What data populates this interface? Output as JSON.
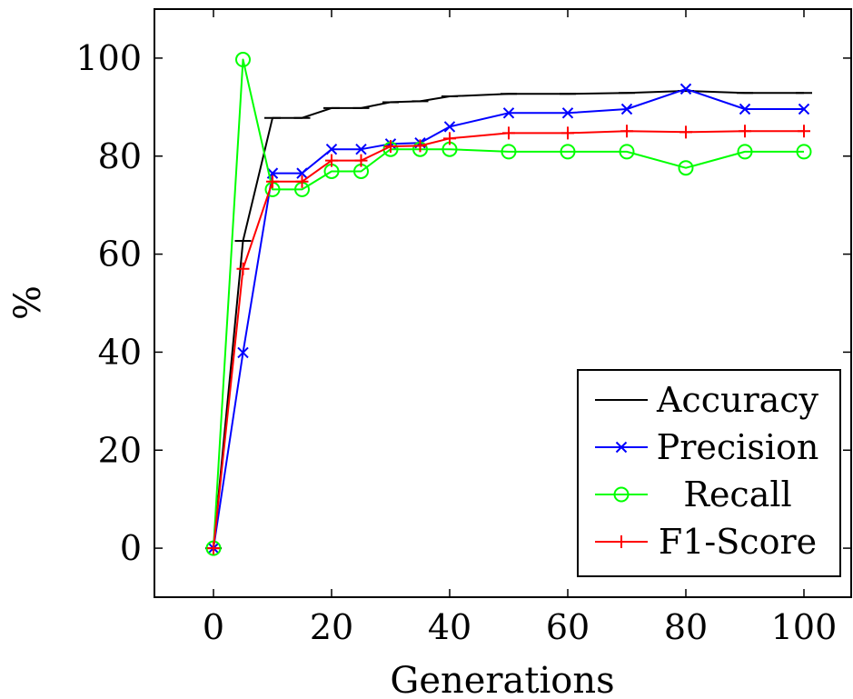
{
  "chart_data": {
    "type": "line",
    "xlabel": "Generations",
    "ylabel": "%",
    "xlim": [
      -10,
      108
    ],
    "ylim": [
      -10,
      110
    ],
    "xticks": [
      0,
      20,
      40,
      60,
      80,
      100
    ],
    "yticks": [
      0,
      20,
      40,
      60,
      80,
      100
    ],
    "grid": false,
    "legend_position": "bottom-right",
    "series": [
      {
        "name": "Accuracy",
        "color": "#000000",
        "marker": "dash",
        "x": [
          0,
          5,
          10,
          15,
          20,
          25,
          30,
          35,
          40,
          50,
          60,
          70,
          80,
          90,
          100
        ],
        "y": [
          0,
          62.7,
          87.8,
          87.8,
          89.8,
          89.8,
          91.0,
          91.2,
          92.2,
          92.7,
          92.7,
          92.9,
          93.3,
          92.9,
          92.9
        ]
      },
      {
        "name": "Precision",
        "color": "#0000ff",
        "marker": "x",
        "x": [
          0,
          5,
          10,
          15,
          20,
          25,
          30,
          35,
          40,
          50,
          60,
          70,
          80,
          90,
          100
        ],
        "y": [
          0,
          39.9,
          76.5,
          76.5,
          81.4,
          81.4,
          82.5,
          82.7,
          86.0,
          88.8,
          88.8,
          89.6,
          93.7,
          89.6,
          89.6
        ]
      },
      {
        "name": "Recall",
        "color": "#00ff00",
        "marker": "circle",
        "x": [
          0,
          5,
          10,
          15,
          20,
          25,
          30,
          35,
          40,
          50,
          60,
          70,
          80,
          90,
          100
        ],
        "y": [
          0,
          99.7,
          73.2,
          73.2,
          76.9,
          76.9,
          81.4,
          81.4,
          81.4,
          80.9,
          80.9,
          80.9,
          77.6,
          80.9,
          80.9
        ]
      },
      {
        "name": "F1-Score",
        "color": "#ff0000",
        "marker": "plus",
        "x": [
          0,
          5,
          10,
          15,
          20,
          25,
          30,
          35,
          40,
          50,
          60,
          70,
          80,
          90,
          100
        ],
        "y": [
          0,
          57.0,
          74.8,
          74.8,
          79.1,
          79.1,
          82.0,
          82.1,
          83.6,
          84.7,
          84.7,
          85.1,
          84.9,
          85.1,
          85.1
        ]
      }
    ]
  }
}
